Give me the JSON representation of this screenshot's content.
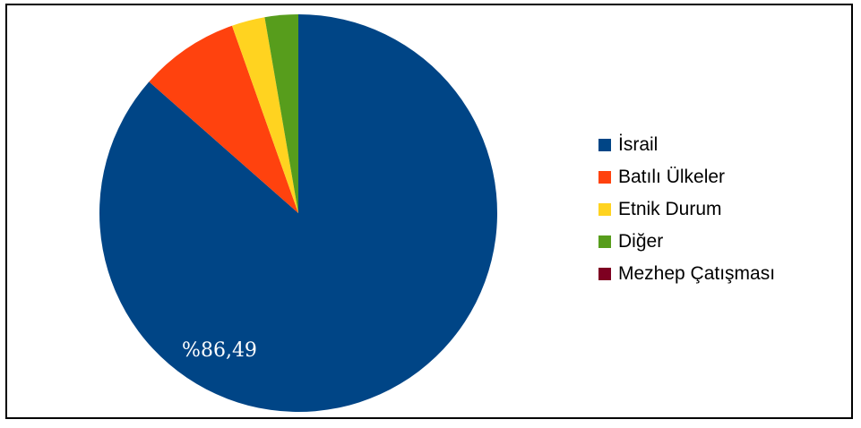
{
  "chart_data": {
    "type": "pie",
    "title": "",
    "start_angle_deg": 0,
    "direction": "clockwise",
    "legend_position": "right",
    "slices": [
      {
        "label": "İsrail",
        "value": 86.49,
        "color": "#004586",
        "data_label": "%86,49"
      },
      {
        "label": "Batılı Ülkeler",
        "value": 8.1,
        "color": "#ff420e",
        "data_label": ""
      },
      {
        "label": "Etnik Durum",
        "value": 2.7,
        "color": "#ffd320",
        "data_label": ""
      },
      {
        "label": "Diğer",
        "value": 2.71,
        "color": "#579d1c",
        "data_label": ""
      },
      {
        "label": "Mezhep Çatışması",
        "value": 0,
        "color": "#7e0021",
        "data_label": ""
      }
    ]
  }
}
